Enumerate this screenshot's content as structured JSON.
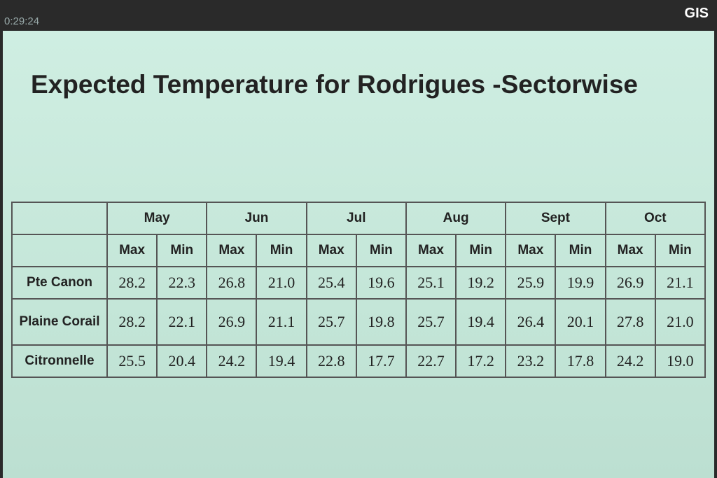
{
  "overlay": {
    "timer": "0:29:24",
    "logo": "GIS"
  },
  "title": "Expected Temperature for Rodrigues -Sectorwise",
  "table": {
    "months": [
      "May",
      "Jun",
      "Jul",
      "Aug",
      "Sept",
      "Oct"
    ],
    "sub": [
      "Max",
      "Min"
    ],
    "rows": [
      {
        "label": "Pte Canon",
        "values": [
          "28.2",
          "22.3",
          "26.8",
          "21.0",
          "25.4",
          "19.6",
          "25.1",
          "19.2",
          "25.9",
          "19.9",
          "26.9",
          "21.1"
        ]
      },
      {
        "label": "Plaine Corail",
        "values": [
          "28.2",
          "22.1",
          "26.9",
          "21.1",
          "25.7",
          "19.8",
          "25.7",
          "19.4",
          "26.4",
          "20.1",
          "27.8",
          "21.0"
        ]
      },
      {
        "label": "Citronnelle",
        "values": [
          "25.5",
          "20.4",
          "24.2",
          "19.4",
          "22.8",
          "17.7",
          "22.7",
          "17.2",
          "23.2",
          "17.8",
          "24.2",
          "19.0"
        ]
      }
    ]
  }
}
